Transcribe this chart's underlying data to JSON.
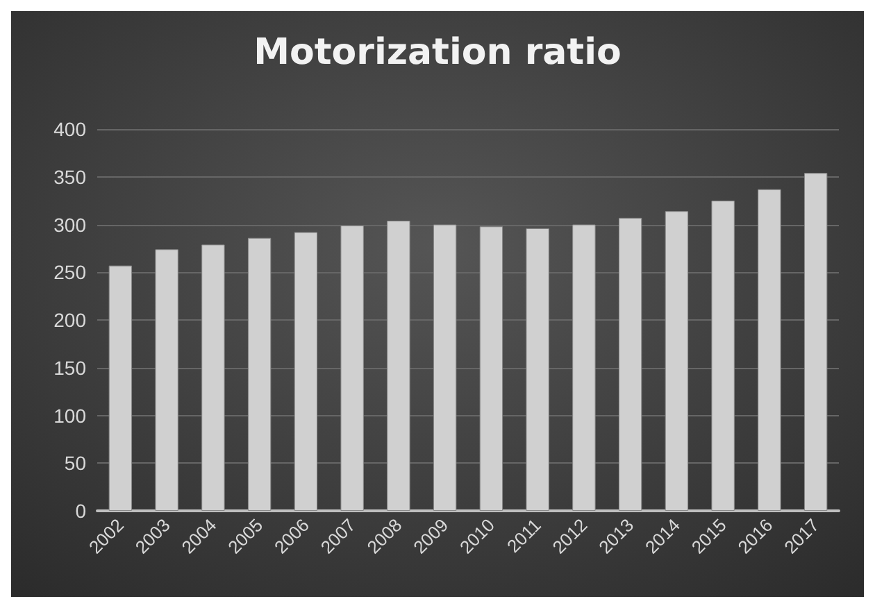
{
  "chart_data": {
    "type": "bar",
    "title": "Motorization ratio",
    "categories": [
      "2002",
      "2003",
      "2004",
      "2005",
      "2006",
      "2007",
      "2008",
      "2009",
      "2010",
      "2011",
      "2012",
      "2013",
      "2014",
      "2015",
      "2016",
      "2017"
    ],
    "values": [
      257,
      274,
      279,
      286,
      292,
      299,
      304,
      300,
      298,
      296,
      300,
      307,
      314,
      325,
      337,
      354
    ],
    "color": "#d0d0d0",
    "ylim": [
      0,
      400
    ],
    "yticks": [
      0,
      50,
      100,
      150,
      200,
      250,
      300,
      350,
      400
    ],
    "grid": "y"
  }
}
